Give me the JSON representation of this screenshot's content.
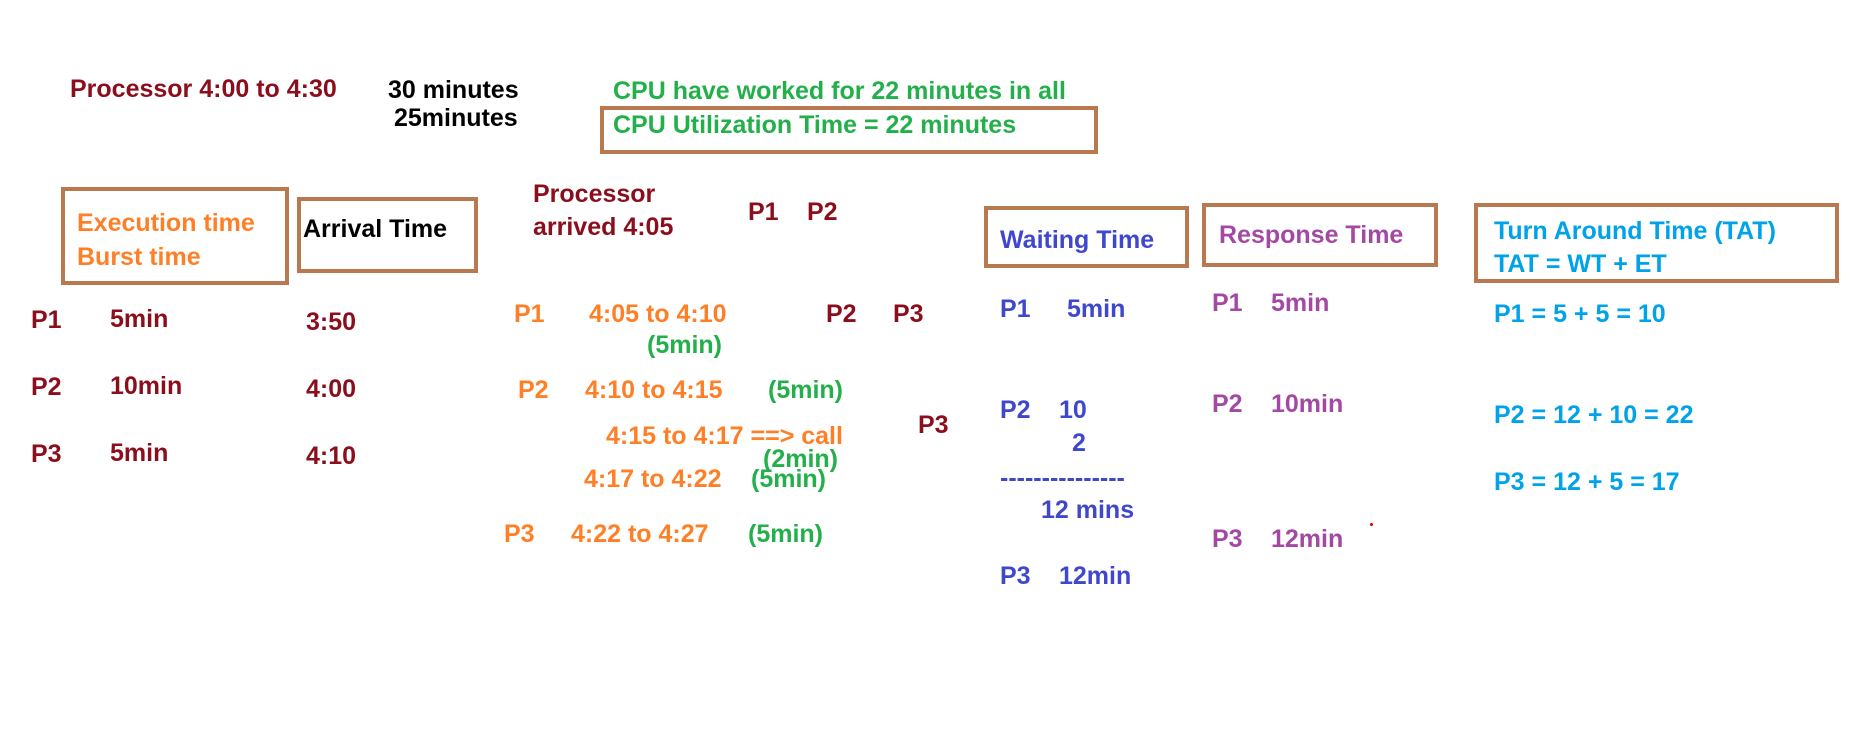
{
  "header": {
    "processor_range": "Processor 4:00 to 4:30",
    "thirty_minutes": "30 minutes",
    "twentyfive_minutes": "25minutes",
    "cpu_worked": "CPU have worked for 22 minutes in all",
    "cpu_utilization": "CPU Utilization Time = 22 minutes"
  },
  "table": {
    "execution_header_line1": "Execution time",
    "execution_header_line2": "Burst time",
    "arrival_header": "Arrival Time",
    "rows": [
      {
        "process": "P1",
        "burst": "5min",
        "arrival": "3:50"
      },
      {
        "process": "P2",
        "burst": "10min",
        "arrival": "4:00"
      },
      {
        "process": "P3",
        "burst": "5min",
        "arrival": "4:10"
      }
    ]
  },
  "timeline": {
    "processor_arrived_line1": "Processor",
    "processor_arrived_line2": "arrived 4:05",
    "queue_top_p1": "P1",
    "queue_top_p2": "P2",
    "p1_label": "P1",
    "p1_range": "4:05 to 4:10",
    "p1_duration": "(5min)",
    "queue_p2": "P2",
    "queue_p3": "P3",
    "p2_label": "P2",
    "p2_range": "4:10   to 4:15",
    "p2_duration": "(5min)",
    "call_range": "4:15 to 4:17 ==> call",
    "call_duration": "(2min)",
    "queue_p3_b": "P3",
    "p2b_range": "4:17 to 4:22",
    "p2b_duration": "(5min)",
    "p3_label": "P3",
    "p3_range": "4:22  to 4:27",
    "p3_duration": "(5min)"
  },
  "waiting": {
    "header": "Waiting Time",
    "p1_label": "P1",
    "p1_value": "5min",
    "p2_label": "P2",
    "p2_value": "10",
    "p2_extra": "2",
    "divider": "---------------",
    "p2_total": "12 mins",
    "p3_label": "P3",
    "p3_value": "12min"
  },
  "response": {
    "header": "Response Time",
    "p1_label": "P1",
    "p1_value": "5min",
    "p2_label": "P2",
    "p2_value": "10min",
    "p3_label": "P3",
    "p3_value": "12min"
  },
  "tat": {
    "header_line1": "Turn Around Time (TAT)",
    "header_line2": "TAT = WT + ET",
    "p1": "P1 = 5  +  5  = 10",
    "p2": "P2 =  12  +  10 = 22",
    "p3": "P3 = 12  +  5 = 17"
  }
}
